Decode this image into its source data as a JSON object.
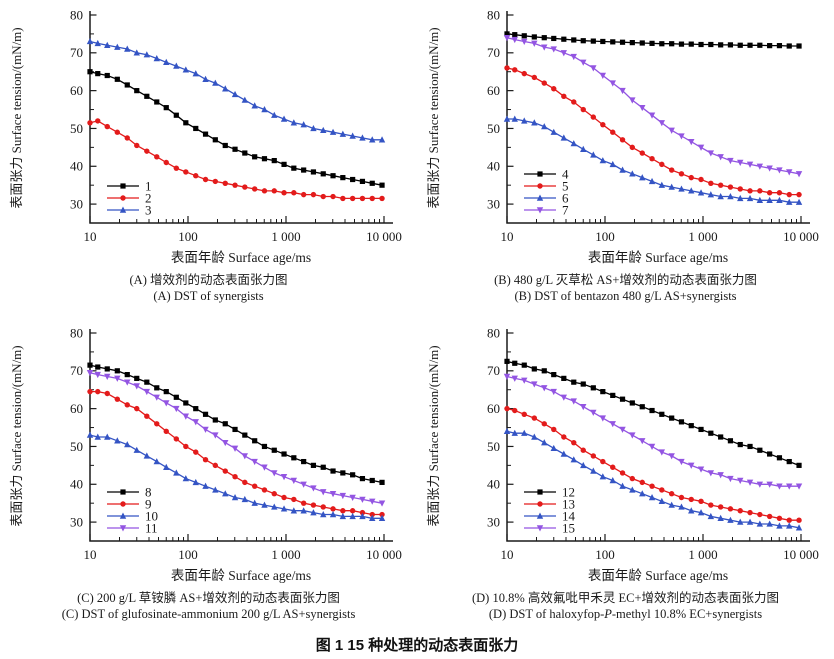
{
  "figure": {
    "title": "图 1  15 种处理的动态表面张力"
  },
  "axes": {
    "xlabel": "表面年龄 Surface age/ms",
    "ylabel": "表面张力 Surface tension/(mN/m)",
    "xscale": "log",
    "xticks": [
      "10",
      "100",
      "1 000",
      "10 000"
    ],
    "xtick_values": [
      10,
      100,
      1000,
      10000
    ],
    "yticks": [
      30,
      40,
      50,
      60,
      70,
      80
    ],
    "ylim": [
      25,
      80
    ],
    "xlim": [
      10,
      12000
    ],
    "grid": false,
    "legend_position": "lower-left"
  },
  "colors": {
    "black": "#000000",
    "red": "#e31b1b",
    "blue": "#3454c4",
    "violet": "#9355e2",
    "axis": "#1a1a1a"
  },
  "chart_data": [
    {
      "id": "A",
      "type": "line",
      "caption_zh": "(A) 增效剂的动态表面张力图",
      "caption_en_parts": [
        "(A) DST of synergists",
        "",
        ""
      ],
      "x": [
        10,
        12,
        15,
        19,
        24,
        30,
        38,
        48,
        60,
        76,
        95,
        120,
        151,
        190,
        240,
        302,
        380,
        479,
        603,
        759,
        955,
        1202,
        1514,
        1905,
        2399,
        3020,
        3802,
        4786,
        6026,
        7586,
        9550
      ],
      "series": [
        {
          "name": "1",
          "color": "black",
          "marker": "square",
          "values": [
            65,
            64.5,
            64,
            63,
            61.5,
            60,
            58.5,
            57,
            55.5,
            53.5,
            51.5,
            50,
            48.5,
            47,
            45.5,
            44.5,
            43.5,
            42.5,
            42,
            41.5,
            40.5,
            39.5,
            39,
            38.5,
            38,
            37.5,
            37,
            36.5,
            36,
            35.5,
            35
          ]
        },
        {
          "name": "2",
          "color": "red",
          "marker": "circle",
          "values": [
            51.5,
            52,
            50.5,
            49,
            47.5,
            45.5,
            44,
            42.5,
            41,
            39.5,
            38.5,
            37.5,
            36.5,
            36,
            35.5,
            35,
            34.5,
            34,
            33.5,
            33.5,
            33,
            33,
            32.5,
            32.5,
            32,
            32,
            31.5,
            31.5,
            31.5,
            31.5,
            31.5
          ]
        },
        {
          "name": "3",
          "color": "blue",
          "marker": "triangle-up",
          "values": [
            73,
            72.5,
            72,
            71.5,
            71,
            70,
            69.5,
            68.5,
            67.5,
            66.5,
            65.5,
            64.5,
            63,
            62,
            60.5,
            59,
            57.5,
            56,
            55,
            53.5,
            52.5,
            51.5,
            51,
            50,
            49.5,
            49,
            48.5,
            48,
            47.5,
            47,
            47
          ]
        }
      ]
    },
    {
      "id": "B",
      "type": "line",
      "caption_zh": "(B) 480 g/L 灭草松 AS+增效剂的动态表面张力图",
      "caption_en_parts": [
        "(B) DST of bentazon 480 g/L AS+synergists",
        "",
        ""
      ],
      "x": [
        10,
        12,
        15,
        19,
        24,
        30,
        38,
        48,
        60,
        76,
        95,
        120,
        151,
        190,
        240,
        302,
        380,
        479,
        603,
        759,
        955,
        1202,
        1514,
        1905,
        2399,
        3020,
        3802,
        4786,
        6026,
        7586,
        9550
      ],
      "series": [
        {
          "name": "4",
          "color": "black",
          "marker": "square",
          "values": [
            75,
            74.8,
            74.5,
            74.2,
            74,
            73.8,
            73.6,
            73.4,
            73.2,
            73.1,
            73,
            72.9,
            72.8,
            72.7,
            72.6,
            72.5,
            72.4,
            72.4,
            72.3,
            72.3,
            72.2,
            72.2,
            72.1,
            72.1,
            72,
            72,
            72,
            71.9,
            71.9,
            71.8,
            71.8
          ]
        },
        {
          "name": "5",
          "color": "red",
          "marker": "circle",
          "values": [
            66,
            65.5,
            64.5,
            63.5,
            62,
            60.5,
            58.5,
            57,
            55,
            53,
            51,
            49,
            47,
            45,
            43.5,
            42,
            40.5,
            39,
            38,
            37,
            36.5,
            35.5,
            35,
            34.5,
            34,
            33.5,
            33.5,
            33,
            33,
            32.5,
            32.5
          ]
        },
        {
          "name": "6",
          "color": "blue",
          "marker": "triangle-up",
          "values": [
            52.5,
            52.5,
            52,
            51.5,
            50.5,
            49,
            47.5,
            46,
            44.5,
            43,
            41.5,
            40.5,
            39,
            38,
            37,
            36,
            35,
            34.5,
            34,
            33.5,
            33,
            32.5,
            32,
            32,
            31.5,
            31.5,
            31,
            31,
            31,
            30.5,
            30.5
          ]
        },
        {
          "name": "7",
          "color": "violet",
          "marker": "triangle-down",
          "values": [
            74,
            73.5,
            73,
            72.5,
            71.5,
            71,
            70,
            69,
            67.5,
            66,
            64,
            62,
            60,
            57.5,
            55.5,
            53.5,
            51.5,
            49.5,
            48,
            46.5,
            45,
            43.5,
            42.5,
            41.5,
            41,
            40.5,
            40,
            39.5,
            39,
            38.5,
            38
          ]
        }
      ]
    },
    {
      "id": "C",
      "type": "line",
      "caption_zh": "(C) 200 g/L 草铵膦 AS+增效剂的动态表面张力图",
      "caption_en_parts": [
        "(C) DST of glufosinate-ammonium 200 g/L AS+synergists",
        "",
        ""
      ],
      "x": [
        10,
        12,
        15,
        19,
        24,
        30,
        38,
        48,
        60,
        76,
        95,
        120,
        151,
        190,
        240,
        302,
        380,
        479,
        603,
        759,
        955,
        1202,
        1514,
        1905,
        2399,
        3020,
        3802,
        4786,
        6026,
        7586,
        9550
      ],
      "series": [
        {
          "name": "8",
          "color": "black",
          "marker": "square",
          "values": [
            71.5,
            71,
            70.5,
            70,
            69,
            68,
            67,
            65.5,
            64.5,
            63,
            61.5,
            60,
            58.5,
            57,
            56,
            54.5,
            53,
            51.5,
            50,
            49,
            48,
            47,
            46,
            45,
            44.5,
            43.5,
            43,
            42.5,
            41.5,
            41,
            40.5
          ]
        },
        {
          "name": "9",
          "color": "red",
          "marker": "circle",
          "values": [
            64.5,
            64.5,
            64,
            62.5,
            61,
            60,
            58,
            56,
            54,
            52,
            50,
            48.5,
            46.5,
            45,
            43.5,
            42,
            40.5,
            39.5,
            38.5,
            37.5,
            36.5,
            36,
            35,
            34.5,
            34,
            33.5,
            33,
            33,
            32.5,
            32,
            32
          ]
        },
        {
          "name": "10",
          "color": "blue",
          "marker": "triangle-up",
          "values": [
            53,
            52.5,
            52.5,
            51.5,
            50.5,
            49,
            47.5,
            46,
            44.5,
            43,
            41.5,
            40.5,
            39.5,
            38.5,
            37.5,
            36.5,
            36,
            35,
            34.5,
            34,
            33.5,
            33,
            33,
            32.5,
            32,
            32,
            31.5,
            31.5,
            31.5,
            31,
            31
          ]
        },
        {
          "name": "11",
          "color": "violet",
          "marker": "triangle-down",
          "values": [
            69.5,
            69,
            68.5,
            68,
            67,
            66,
            64.5,
            63,
            61.5,
            60,
            58,
            56.5,
            54.5,
            53,
            51,
            49.5,
            47.5,
            46,
            44.5,
            43,
            42,
            41,
            40,
            39,
            38,
            37.5,
            37,
            36.5,
            36,
            35.5,
            35
          ]
        }
      ]
    },
    {
      "id": "D",
      "type": "line",
      "caption_zh": "(D) 10.8% 高效氟吡甲禾灵 EC+增效剂的动态表面张力图",
      "caption_en_parts": [
        "(D) DST of haloxyfop-",
        "P",
        "-methyl 10.8% EC+synergists"
      ],
      "x": [
        10,
        12,
        15,
        19,
        24,
        30,
        38,
        48,
        60,
        76,
        95,
        120,
        151,
        190,
        240,
        302,
        380,
        479,
        603,
        759,
        955,
        1202,
        1514,
        1905,
        2399,
        3020,
        3802,
        4786,
        6026,
        7586,
        9550
      ],
      "series": [
        {
          "name": "12",
          "color": "black",
          "marker": "square",
          "values": [
            72.5,
            72,
            71.5,
            70.5,
            70,
            69,
            68,
            67,
            66.5,
            65.5,
            64.5,
            63.5,
            62.5,
            61.5,
            60.5,
            59.5,
            58.5,
            57.5,
            56.5,
            55.5,
            54.5,
            53.5,
            52.5,
            51.5,
            50.5,
            50,
            49,
            48,
            47,
            46,
            45
          ]
        },
        {
          "name": "13",
          "color": "red",
          "marker": "circle",
          "values": [
            60,
            59.5,
            58.5,
            57.5,
            56,
            54.5,
            52.5,
            51,
            49,
            47.5,
            46,
            44.5,
            43,
            41.5,
            40.5,
            39.5,
            38.5,
            37.5,
            36.5,
            36,
            35.5,
            34.5,
            34,
            33.5,
            33,
            32.5,
            32,
            31.5,
            31,
            30.5,
            30.5
          ]
        },
        {
          "name": "14",
          "color": "blue",
          "marker": "triangle-up",
          "values": [
            54,
            53.5,
            53.5,
            52.5,
            51,
            49.5,
            48,
            46.5,
            45,
            43.5,
            42,
            41,
            39.5,
            38.5,
            37.5,
            36.5,
            35.5,
            34.5,
            34,
            33,
            32.5,
            31.5,
            31,
            30.5,
            30,
            30,
            29.5,
            29.5,
            29,
            29,
            28.5
          ]
        },
        {
          "name": "15",
          "color": "violet",
          "marker": "triangle-down",
          "values": [
            68.5,
            68,
            67.5,
            66.5,
            65.5,
            64.5,
            63,
            62,
            60.5,
            59,
            57.5,
            56,
            54.5,
            53,
            51.5,
            50,
            48.5,
            47.5,
            46,
            45,
            44,
            43,
            42.5,
            41.5,
            41,
            40.5,
            40,
            40,
            39.5,
            39.5,
            39.5
          ]
        }
      ]
    }
  ]
}
